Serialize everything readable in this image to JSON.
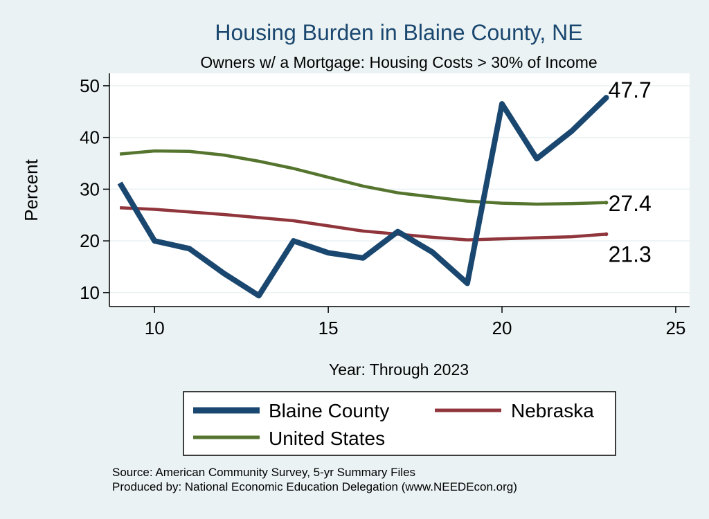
{
  "chart_data": {
    "type": "line",
    "title": "Housing Burden in Blaine County, NE",
    "subtitle": "Owners w/ a Mortgage: Housing Costs > 30% of Income",
    "xlabel": "Year: Through 2023",
    "ylabel": "Percent",
    "xlim": [
      8.7,
      25.4
    ],
    "ylim": [
      7.3,
      52.4
    ],
    "xticks": [
      10,
      15,
      20,
      25
    ],
    "yticks": [
      10,
      20,
      30,
      40,
      50
    ],
    "grid": true,
    "legend_position": "bottom",
    "series": [
      {
        "name": "Blaine County",
        "color": "#1a476f",
        "end_label": "47.7",
        "x": [
          9,
          10,
          11,
          12,
          13,
          14,
          15,
          16,
          17,
          18,
          19,
          20,
          21,
          22,
          23
        ],
        "values": [
          31.2,
          20.0,
          18.5,
          13.7,
          9.4,
          20.0,
          17.7,
          16.7,
          21.8,
          17.8,
          11.8,
          46.5,
          35.9,
          41.2,
          47.7
        ]
      },
      {
        "name": "Nebraska",
        "color": "#90353b",
        "end_label": "21.3",
        "x": [
          9,
          10,
          11,
          12,
          13,
          14,
          15,
          16,
          17,
          18,
          19,
          20,
          21,
          22,
          23
        ],
        "values": [
          26.4,
          26.1,
          25.6,
          25.1,
          24.5,
          23.9,
          22.9,
          21.9,
          21.3,
          20.7,
          20.2,
          20.4,
          20.6,
          20.8,
          21.3
        ]
      },
      {
        "name": "United States",
        "color": "#55752f",
        "end_label": "27.4",
        "x": [
          9,
          10,
          11,
          12,
          13,
          14,
          15,
          16,
          17,
          18,
          19,
          20,
          21,
          22,
          23
        ],
        "values": [
          36.8,
          37.4,
          37.3,
          36.6,
          35.4,
          34.0,
          32.3,
          30.6,
          29.3,
          28.5,
          27.7,
          27.3,
          27.1,
          27.2,
          27.4
        ]
      }
    ],
    "notes": [
      "Source: American Community Survey, 5-yr Summary Files",
      "Produced by: National Economic Education Delegation (www.NEEDEcon.org)"
    ]
  }
}
